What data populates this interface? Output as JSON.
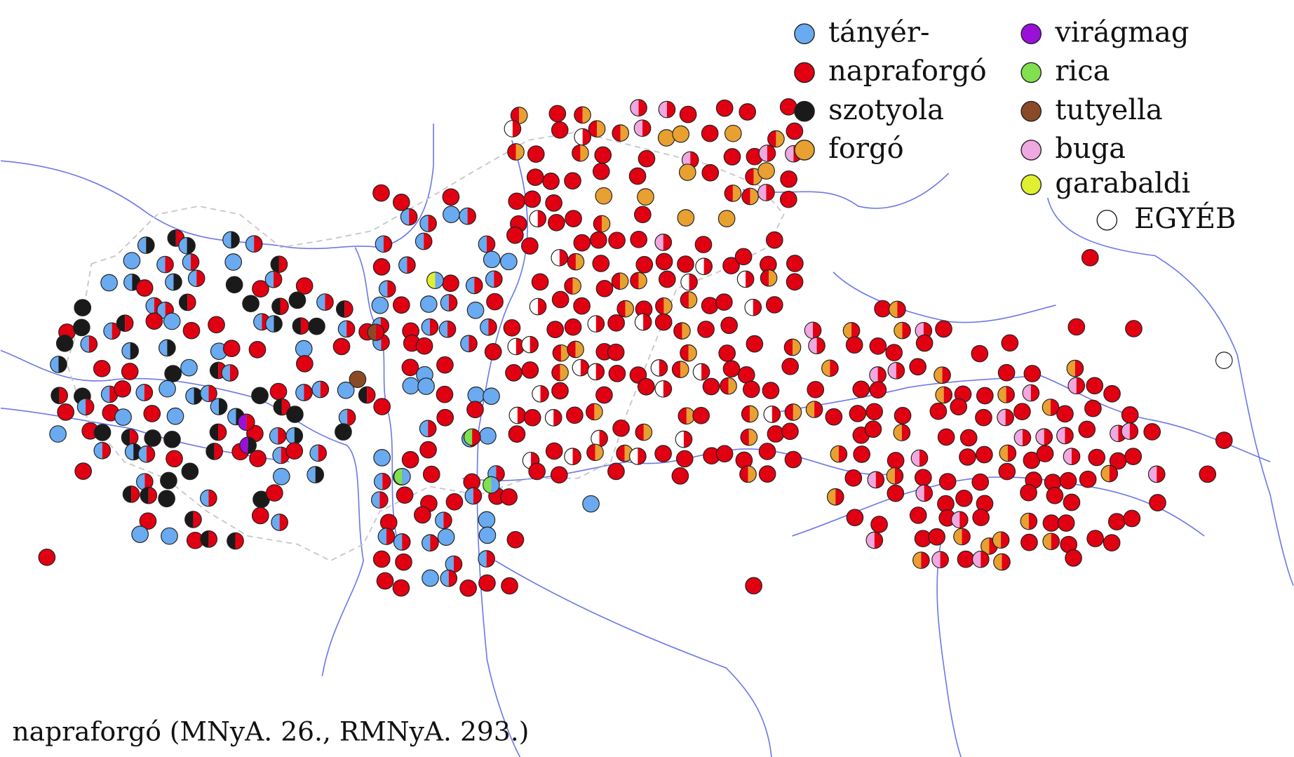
{
  "legend": {
    "items": [
      {
        "label": "tányér-",
        "color": "#6aaaf0"
      },
      {
        "label": "napraforgó",
        "color": "#e00012"
      },
      {
        "label": "szotyola",
        "color": "#1a1a1a"
      },
      {
        "label": "forgó",
        "color": "#e8a030"
      },
      {
        "label": "virágmag",
        "color": "#9a10d8"
      },
      {
        "label": "rica",
        "color": "#80e050"
      },
      {
        "label": "tutyella",
        "color": "#8a4a28"
      },
      {
        "label": "buga",
        "color": "#f0a8e0"
      },
      {
        "label": "garabaldi",
        "color": "#e0f030"
      },
      {
        "label": "EGYÉB",
        "color": "#ffffff"
      }
    ]
  },
  "caption": "napraforgó (MNyA. 26., RMNyA. 293.)"
}
